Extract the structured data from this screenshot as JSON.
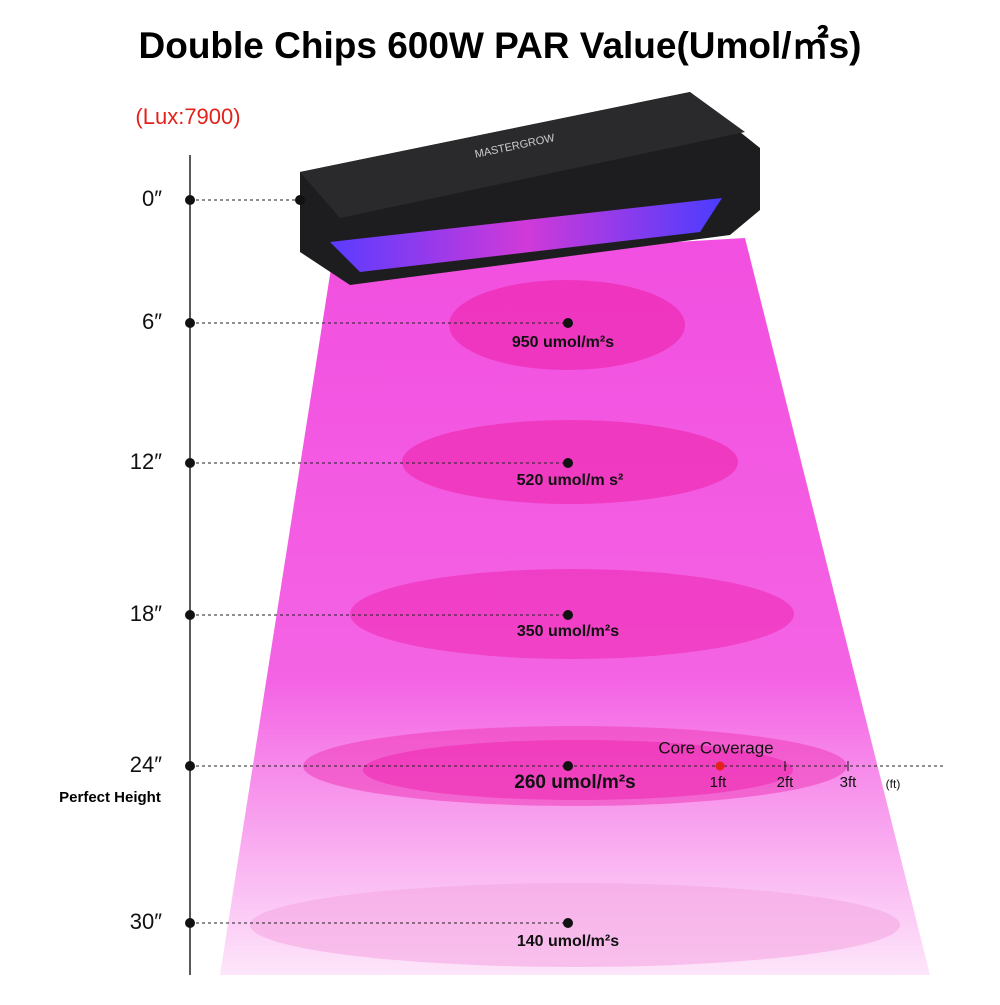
{
  "title": "Double Chips 600W PAR Value(Umol/㎡s)",
  "lux": "(Lux:7900)",
  "brand": "MASTERGROW",
  "levels": [
    {
      "height": "0″"
    },
    {
      "height": "6″",
      "par": "950 umol/m²s"
    },
    {
      "height": "12″",
      "par": "520 umol/m s²"
    },
    {
      "height": "18″",
      "par": "350 umol/m²s"
    },
    {
      "height": "24″",
      "par": "260 umol/m²s"
    },
    {
      "height": "30″",
      "par": "140 umol/m²s"
    }
  ],
  "perfect_height": "Perfect Height",
  "coverage": {
    "title": "Core Coverage",
    "ticks": [
      "1ft",
      "2ft",
      "3ft"
    ],
    "unit": "(ft)"
  }
}
